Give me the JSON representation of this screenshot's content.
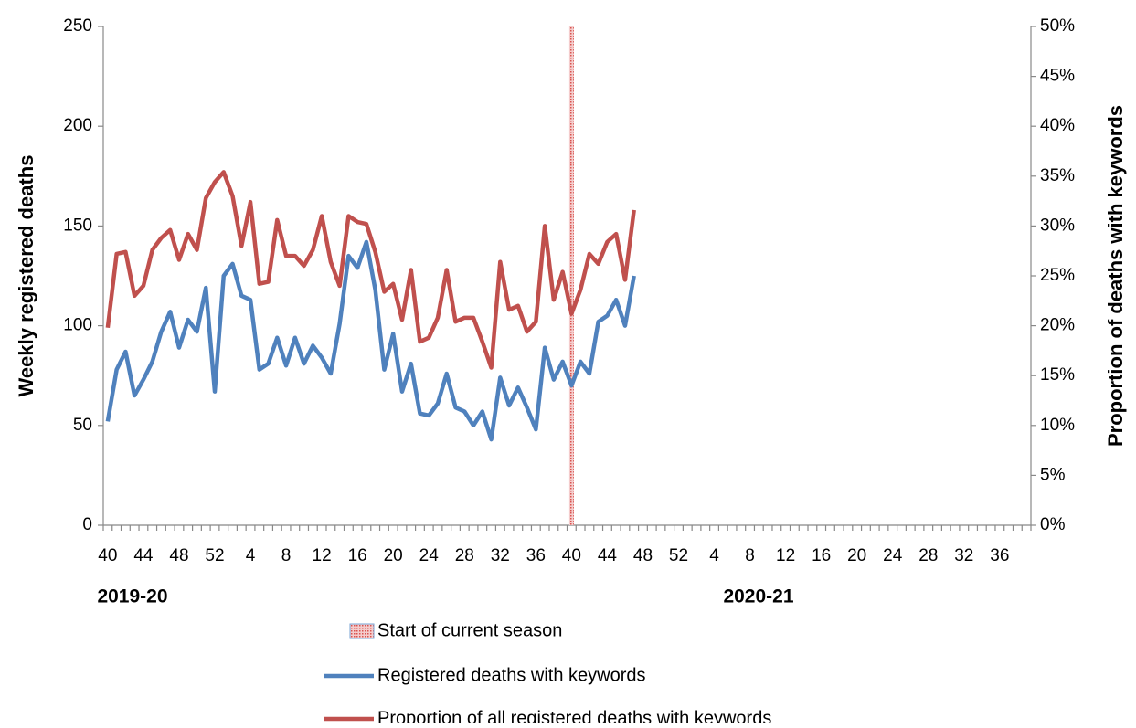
{
  "chart_data": {
    "type": "line",
    "y_label": "Weekly registered deaths",
    "y2_label": "Proportion of deaths with keywords",
    "season_labels": [
      "2019-20",
      "2020-21"
    ],
    "categories": [
      "40",
      null,
      null,
      null,
      "44",
      null,
      null,
      null,
      "48",
      null,
      null,
      null,
      "52",
      null,
      null,
      null,
      "4",
      null,
      null,
      null,
      "8",
      null,
      null,
      null,
      "12",
      null,
      null,
      null,
      "16",
      null,
      null,
      null,
      "20",
      null,
      null,
      null,
      "24",
      null,
      null,
      null,
      "28",
      null,
      null,
      null,
      "32",
      null,
      null,
      null,
      "36",
      null,
      null,
      null,
      "40",
      null,
      null,
      null,
      "44",
      null,
      null,
      null,
      "48",
      null,
      null,
      null,
      "52",
      null,
      null,
      null,
      "4",
      null,
      null,
      null,
      "8",
      null,
      null,
      null,
      "12",
      null,
      null,
      null,
      "16",
      null,
      null,
      null,
      "20",
      null,
      null,
      null,
      "24",
      null,
      null,
      null,
      "28",
      null,
      null,
      null,
      "32",
      null,
      null,
      null,
      "36",
      null,
      null,
      null
    ],
    "ylim": [
      0,
      250
    ],
    "yticks": [
      0,
      50,
      100,
      150,
      200,
      250
    ],
    "y2lim": [
      0,
      50
    ],
    "y2ticks": [
      {
        "value": 0,
        "label": "0%"
      },
      {
        "value": 5,
        "label": "5%"
      },
      {
        "value": 10,
        "label": "10%"
      },
      {
        "value": 15,
        "label": "15%"
      },
      {
        "value": 20,
        "label": "20%"
      },
      {
        "value": 25,
        "label": "25%"
      },
      {
        "value": 30,
        "label": "30%"
      },
      {
        "value": 35,
        "label": "35%"
      },
      {
        "value": 40,
        "label": "40%"
      },
      {
        "value": 45,
        "label": "45%"
      },
      {
        "value": 50,
        "label": "50%"
      }
    ],
    "series": [
      {
        "name": "Start of current season",
        "kind": "bar",
        "axis": "y2",
        "color": "#e06666",
        "values": [
          null,
          null,
          null,
          null,
          null,
          null,
          null,
          null,
          null,
          null,
          null,
          null,
          null,
          null,
          null,
          null,
          null,
          null,
          null,
          null,
          null,
          null,
          null,
          null,
          null,
          null,
          null,
          null,
          null,
          null,
          null,
          null,
          null,
          null,
          null,
          null,
          null,
          null,
          null,
          null,
          null,
          null,
          null,
          null,
          null,
          null,
          null,
          null,
          null,
          null,
          null,
          null,
          50,
          null,
          null,
          null,
          null,
          null,
          null,
          null,
          null,
          null,
          null,
          null,
          null,
          null,
          null,
          null,
          null,
          null,
          null,
          null,
          null,
          null,
          null,
          null,
          null,
          null,
          null,
          null,
          null,
          null,
          null,
          null,
          null,
          null,
          null,
          null,
          null,
          null,
          null,
          null,
          null,
          null,
          null,
          null,
          null,
          null,
          null,
          null,
          null,
          null,
          null,
          null
        ]
      },
      {
        "name": "Registered deaths with keywords",
        "kind": "line",
        "color": "#4f81bd",
        "values": [
          52,
          78,
          87,
          65,
          73,
          82,
          97,
          107,
          89,
          103,
          97,
          119,
          67,
          125,
          131,
          115,
          113,
          78,
          81,
          94,
          80,
          94,
          81,
          90,
          84,
          76,
          101,
          135,
          129,
          142,
          118,
          78,
          96,
          67,
          81,
          56,
          55,
          61,
          76,
          59,
          57,
          50,
          57,
          43,
          74,
          60,
          69,
          59,
          48,
          89,
          73,
          82,
          70,
          82,
          76,
          102,
          105,
          113,
          100,
          125,
          null,
          null,
          null,
          null,
          null,
          null,
          null,
          null,
          null,
          null,
          null,
          null,
          null,
          null,
          null,
          null,
          null,
          null,
          null,
          null,
          null,
          null,
          null,
          null,
          null,
          null,
          null,
          null,
          null,
          null,
          null,
          null,
          null,
          null,
          null,
          null,
          null,
          null,
          null,
          null,
          null,
          null,
          null,
          null
        ]
      },
      {
        "name": "Proportion of all registered deaths with keywords",
        "kind": "line",
        "axis": "y2",
        "color": "#c0504d",
        "values": [
          19.8,
          27.2,
          27.4,
          23,
          24,
          27.6,
          28.8,
          29.6,
          26.6,
          29.2,
          27.6,
          32.8,
          34.4,
          35.4,
          33,
          28,
          32.4,
          24.2,
          24.4,
          30.6,
          27,
          27,
          26,
          27.6,
          31,
          26.4,
          24,
          31,
          30.4,
          30.2,
          27.4,
          23.4,
          24.2,
          20.6,
          25.6,
          18.4,
          18.8,
          20.8,
          25.6,
          20.4,
          20.8,
          20.8,
          18.4,
          15.8,
          26.4,
          21.6,
          22,
          19.4,
          20.4,
          30,
          22.6,
          25.4,
          21.2,
          23.6,
          27.2,
          26.2,
          28.4,
          29.2,
          24.6,
          31.6,
          null,
          null,
          null,
          null,
          null,
          null,
          null,
          null,
          null,
          null,
          null,
          null,
          null,
          null,
          null,
          null,
          null,
          null,
          null,
          null,
          null,
          null,
          null,
          null,
          null,
          null,
          null,
          null,
          null,
          null,
          null,
          null,
          null,
          null,
          null,
          null,
          null,
          null,
          null,
          null,
          null,
          null,
          null,
          null
        ]
      }
    ]
  }
}
